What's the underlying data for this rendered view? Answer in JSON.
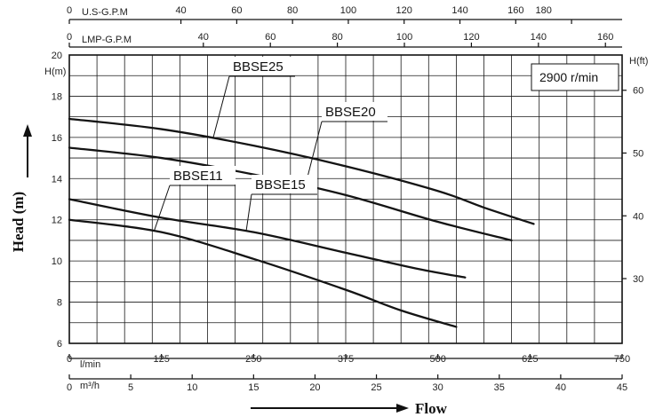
{
  "chart_data": {
    "type": "line",
    "ylabel": "Head (m)",
    "xlabel": "Flow",
    "speed_label": "2900  r/min",
    "y_unit_label": "H(m)",
    "y_right_unit_label": "H(ft)",
    "ylim": [
      6,
      20
    ],
    "y_ticks": [
      6,
      8,
      10,
      12,
      14,
      16,
      18,
      20
    ],
    "y_right_ticks": [
      30,
      40,
      50,
      60
    ],
    "grid": true,
    "x_axes": {
      "lmin": {
        "label": "l/min",
        "range": [
          0,
          750
        ],
        "ticks": [
          0,
          125,
          250,
          375,
          500,
          625,
          750
        ]
      },
      "m3h": {
        "label": "m³/h",
        "range": [
          0,
          45
        ],
        "ticks": [
          0,
          5,
          10,
          15,
          20,
          25,
          30,
          35,
          40,
          45
        ]
      },
      "usgpm": {
        "label": "U.S-G.P.M",
        "ticks": [
          0,
          40,
          60,
          80,
          100,
          120,
          140,
          160,
          180
        ]
      },
      "lmpgpm": {
        "label": "LMP-G.P.M",
        "ticks": [
          0,
          40,
          60,
          80,
          100,
          120,
          140,
          160
        ]
      }
    },
    "series": [
      {
        "name": "BBSE25",
        "x": [
          0,
          125,
          250,
          375,
          500,
          562,
          630
        ],
        "y": [
          16.9,
          16.4,
          15.6,
          14.6,
          13.4,
          12.6,
          11.8
        ]
      },
      {
        "name": "BBSE20",
        "x": [
          0,
          125,
          250,
          375,
          500,
          600
        ],
        "y": [
          15.5,
          15.0,
          14.2,
          13.2,
          11.9,
          11.0
        ]
      },
      {
        "name": "BBSE15",
        "x": [
          0,
          125,
          250,
          375,
          475,
          537
        ],
        "y": [
          13.0,
          12.1,
          11.4,
          10.4,
          9.6,
          9.2
        ]
      },
      {
        "name": "BBSE11",
        "x": [
          0,
          125,
          250,
          375,
          450,
          525
        ],
        "y": [
          12.0,
          11.4,
          10.1,
          8.6,
          7.6,
          6.8
        ]
      }
    ]
  }
}
